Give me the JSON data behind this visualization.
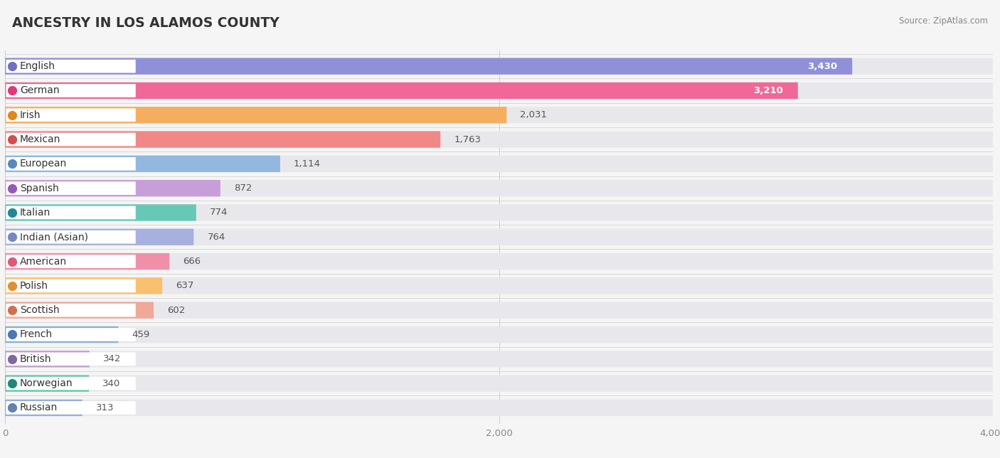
{
  "title": "ANCESTRY IN LOS ALAMOS COUNTY",
  "source": "Source: ZipAtlas.com",
  "categories": [
    "English",
    "German",
    "Irish",
    "Mexican",
    "European",
    "Spanish",
    "Italian",
    "Indian (Asian)",
    "American",
    "Polish",
    "Scottish",
    "French",
    "British",
    "Norwegian",
    "Russian"
  ],
  "values": [
    3430,
    3210,
    2031,
    1763,
    1114,
    872,
    774,
    764,
    666,
    637,
    602,
    459,
    342,
    340,
    313
  ],
  "bar_colors": [
    "#9090d8",
    "#f06898",
    "#f5ae60",
    "#f08888",
    "#92b8e0",
    "#c89ed8",
    "#68c8b8",
    "#a8b0e0",
    "#f090a8",
    "#f8c070",
    "#f0a898",
    "#88b0d8",
    "#c0a0cc",
    "#60c8a8",
    "#98b0d8"
  ],
  "dot_colors": [
    "#7070c0",
    "#e03878",
    "#e08820",
    "#d05050",
    "#5888c0",
    "#9858b8",
    "#208898",
    "#7888c0",
    "#e05878",
    "#e09030",
    "#d07050",
    "#4878b8",
    "#8068a0",
    "#208878",
    "#6880b0"
  ],
  "bg_color": "#f5f5f5",
  "bar_bg_color": "#e8e8ec",
  "xlim": [
    0,
    4000
  ],
  "xticks": [
    0,
    2000,
    4000
  ],
  "title_fontsize": 13.5,
  "label_fontsize": 10,
  "value_fontsize": 9.5
}
